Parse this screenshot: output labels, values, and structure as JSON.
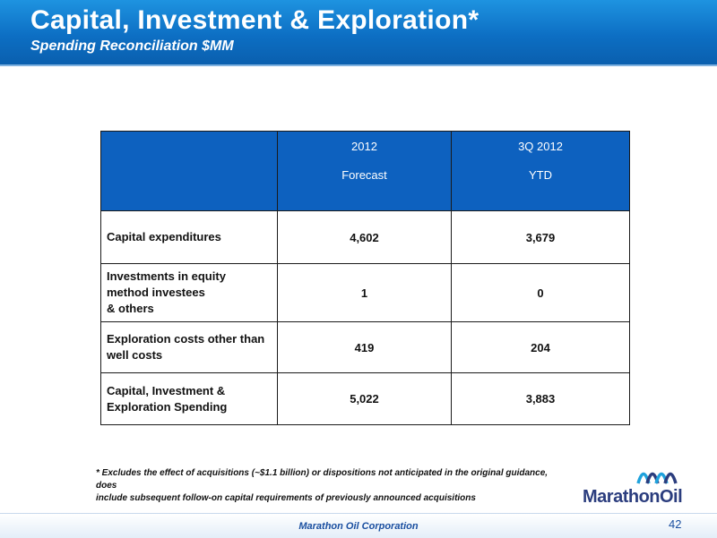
{
  "header": {
    "title": "Capital, Investment & Exploration*",
    "subtitle": "Spending Reconciliation $MM"
  },
  "table": {
    "columns": [
      {
        "line1": "",
        "line2": ""
      },
      {
        "line1": "2012",
        "line2": "Forecast"
      },
      {
        "line1": "3Q 2012",
        "line2": "YTD"
      }
    ],
    "rows": [
      {
        "label_lines": [
          "Capital expenditures"
        ],
        "forecast": "4,602",
        "ytd": "3,679"
      },
      {
        "label_lines": [
          "Investments in equity",
          "method investees",
          "& others"
        ],
        "forecast": "1",
        "ytd": "0"
      },
      {
        "label_lines": [
          "Exploration costs other than",
          "well costs"
        ],
        "forecast": "419",
        "ytd": "204"
      },
      {
        "label_lines": [
          "Capital, Investment &",
          "Exploration Spending"
        ],
        "forecast": "5,022",
        "ytd": "3,883"
      }
    ]
  },
  "footnote": {
    "line1": "* Excludes the effect of acquisitions (~$1.1 billion) or dispositions not anticipated in the original guidance, does",
    "line2": "include subsequent follow-on capital requirements of previously announced acquisitions"
  },
  "logo": {
    "text": "MarathonOil",
    "icon": "marathon-waves-icon",
    "brand_color": "#2b3d7e",
    "accent_color": "#1fa2dc"
  },
  "footer": {
    "company": "Marathon Oil Corporation",
    "page_number": "42"
  },
  "colors": {
    "banner": "#0d6fc4",
    "table_header": "#0d61bf"
  }
}
